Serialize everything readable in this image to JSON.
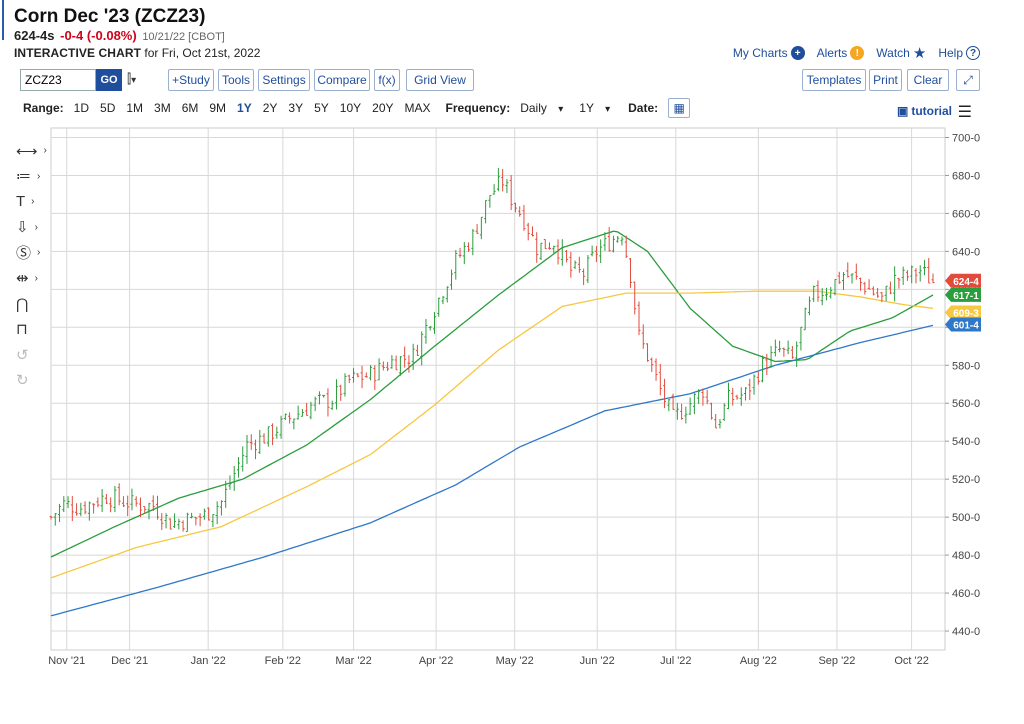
{
  "header": {
    "title": "Corn Dec '23 (ZCZ23)",
    "last": "624-4s",
    "change": "-0-4 (-0.08%)",
    "stamp": "10/21/22 [CBOT]",
    "subtitle_bold": "INTERACTIVE CHART",
    "subtitle_rest": "for Fri, Oct 21st, 2022"
  },
  "top_links": {
    "my_charts": "My Charts",
    "alerts": "Alerts",
    "watch": "Watch",
    "help": "Help",
    "colors": {
      "my_charts": "#1f4e9c",
      "alerts": "#f5a623",
      "watch": "#1f4e9c",
      "help": "#1f4e9c"
    }
  },
  "toolbar": {
    "symbol_value": "ZCZ23",
    "go": "GO",
    "study": "+Study",
    "tools": "Tools",
    "settings": "Settings",
    "compare": "Compare",
    "fx": "f(x)",
    "grid_view": "Grid View",
    "templates": "Templates",
    "print": "Print",
    "clear": "Clear",
    "expand_icon": "expand-icon"
  },
  "range_bar": {
    "range_label": "Range:",
    "ranges": [
      "1D",
      "5D",
      "1M",
      "3M",
      "6M",
      "9M",
      "1Y",
      "2Y",
      "3Y",
      "5Y",
      "10Y",
      "20Y",
      "MAX"
    ],
    "active_range": "1Y",
    "frequency_label": "Frequency:",
    "frequency_value": "Daily",
    "period_value": "1Y",
    "date_label": "Date:",
    "tutorial": "tutorial"
  },
  "drawing_tools": [
    "line-tool-icon",
    "fib-tool-icon",
    "text-tool-icon",
    "arrow-tool-icon",
    "dollar-tool-icon",
    "measure-tool-icon",
    "magnet-icon",
    "lock-icon",
    "undo-icon",
    "redo-icon"
  ],
  "chart_data": {
    "type": "ohlc",
    "x_tick_labels": [
      "Nov '21",
      "Dec '21",
      "Jan '22",
      "Feb '22",
      "Mar '22",
      "Apr '22",
      "May '22",
      "Jun '22",
      "Jul '22",
      "Aug '22",
      "Sep '22",
      "Oct '22"
    ],
    "y_tick_labels": [
      "440-0",
      "460-0",
      "480-0",
      "500-0",
      "520-0",
      "540-0",
      "560-0",
      "580-0",
      "600-0",
      "620-0",
      "640-0",
      "660-0",
      "680-0",
      "700-0"
    ],
    "ylim": [
      430,
      705
    ],
    "grid": true,
    "up_color": "#2a9d3c",
    "down_color": "#e24b3c",
    "price_anchors": [
      [
        0,
        500
      ],
      [
        6,
        507
      ],
      [
        14,
        505
      ],
      [
        26,
        511
      ],
      [
        38,
        507
      ],
      [
        48,
        506
      ],
      [
        56,
        497
      ],
      [
        66,
        499
      ],
      [
        72,
        501
      ],
      [
        80,
        508
      ],
      [
        92,
        538
      ],
      [
        102,
        543
      ],
      [
        112,
        552
      ],
      [
        124,
        560
      ],
      [
        132,
        562
      ],
      [
        140,
        572
      ],
      [
        150,
        575
      ],
      [
        160,
        582
      ],
      [
        170,
        585
      ],
      [
        180,
        610
      ],
      [
        190,
        635
      ],
      [
        198,
        648
      ],
      [
        206,
        670
      ],
      [
        212,
        677
      ],
      [
        216,
        668
      ],
      [
        222,
        657
      ],
      [
        228,
        642
      ],
      [
        236,
        645
      ],
      [
        244,
        630
      ],
      [
        250,
        628
      ],
      [
        256,
        640
      ],
      [
        262,
        645
      ],
      [
        268,
        650
      ],
      [
        272,
        628
      ],
      [
        276,
        595
      ],
      [
        280,
        585
      ],
      [
        286,
        567
      ],
      [
        292,
        552
      ],
      [
        300,
        560
      ],
      [
        306,
        567
      ],
      [
        312,
        548
      ],
      [
        318,
        562
      ],
      [
        326,
        565
      ],
      [
        334,
        580
      ],
      [
        342,
        588
      ],
      [
        348,
        583
      ],
      [
        354,
        605
      ],
      [
        358,
        617
      ],
      [
        364,
        620
      ],
      [
        372,
        628
      ],
      [
        378,
        625
      ],
      [
        384,
        620
      ],
      [
        390,
        615
      ],
      [
        396,
        625
      ],
      [
        402,
        627
      ],
      [
        408,
        630
      ],
      [
        414,
        624
      ]
    ],
    "series": [
      {
        "name": "",
        "color": "#2a9d3c",
        "values": [
          [
            0,
            479
          ],
          [
            30,
            495
          ],
          [
            60,
            510
          ],
          [
            90,
            520
          ],
          [
            120,
            538
          ],
          [
            150,
            562
          ],
          [
            180,
            590
          ],
          [
            210,
            617
          ],
          [
            240,
            642
          ],
          [
            265,
            651
          ],
          [
            280,
            640
          ],
          [
            300,
            610
          ],
          [
            320,
            590
          ],
          [
            340,
            582
          ],
          [
            355,
            583
          ],
          [
            375,
            598
          ],
          [
            395,
            605
          ],
          [
            414,
            617
          ]
        ]
      },
      {
        "name": "",
        "color": "#f5c842",
        "values": [
          [
            0,
            468
          ],
          [
            40,
            484
          ],
          [
            80,
            495
          ],
          [
            120,
            516
          ],
          [
            150,
            533
          ],
          [
            180,
            559
          ],
          [
            210,
            588
          ],
          [
            240,
            611
          ],
          [
            270,
            618
          ],
          [
            300,
            618
          ],
          [
            330,
            619
          ],
          [
            360,
            619
          ],
          [
            380,
            616
          ],
          [
            400,
            612
          ],
          [
            414,
            610
          ]
        ]
      },
      {
        "name": "",
        "color": "#2f78c8",
        "values": [
          [
            0,
            448
          ],
          [
            50,
            463
          ],
          [
            100,
            479
          ],
          [
            150,
            497
          ],
          [
            190,
            517
          ],
          [
            220,
            537
          ],
          [
            260,
            556
          ],
          [
            300,
            565
          ],
          [
            340,
            580
          ],
          [
            380,
            592
          ],
          [
            414,
            601
          ]
        ]
      }
    ],
    "price_tags": [
      {
        "label": "624-4",
        "value": 624.5,
        "color": "#e24b3c"
      },
      {
        "label": "617-1",
        "value": 617.1,
        "color": "#2a9d3c"
      },
      {
        "label": "609-3",
        "value": 609.4,
        "color": "#f5c842"
      },
      {
        "label": "601-4",
        "value": 601.5,
        "color": "#2f78c8"
      }
    ]
  }
}
